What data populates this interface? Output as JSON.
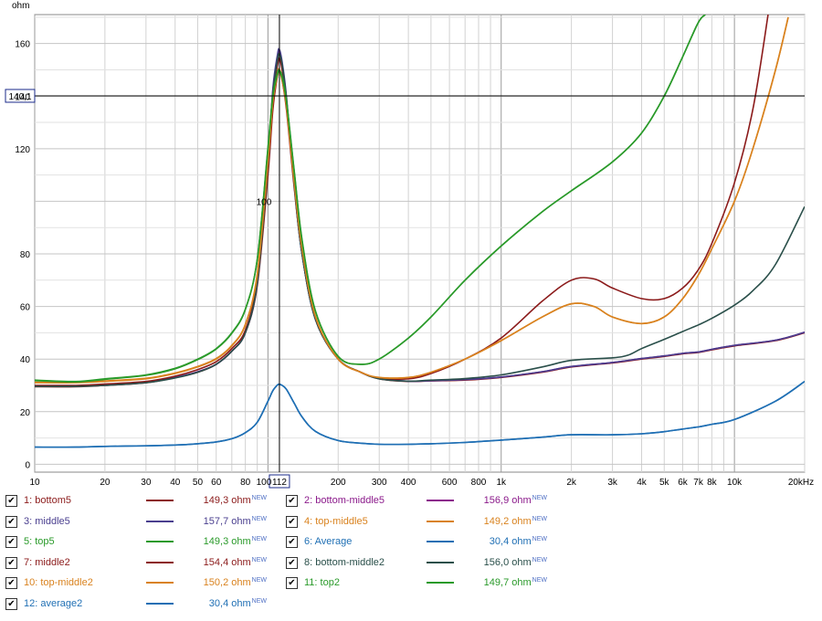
{
  "chart_data": {
    "type": "line",
    "ylabel": "ohm",
    "xunit": "Hz",
    "x_scale": "log",
    "xlim": [
      10,
      20000
    ],
    "ylim": [
      -3,
      171
    ],
    "grid": true,
    "x_ticks": [
      "10",
      "20",
      "30",
      "40",
      "50",
      "60",
      "80",
      "100",
      "200",
      "300",
      "400",
      "600",
      "800",
      "1k",
      "2k",
      "3k",
      "4k",
      "5k",
      "6k",
      "7k",
      "8k",
      "10k",
      "20kHz"
    ],
    "x_tick_values": [
      10,
      20,
      30,
      40,
      50,
      60,
      80,
      100,
      200,
      300,
      400,
      600,
      800,
      1000,
      2000,
      3000,
      4000,
      5000,
      6000,
      7000,
      8000,
      10000,
      20000
    ],
    "y_ticks": [
      0,
      20,
      40,
      60,
      80,
      100,
      120,
      140,
      160
    ],
    "cursor": {
      "x": 112,
      "x_label": "112",
      "y": 140.1,
      "y_label": "140,1"
    },
    "series": [
      {
        "name": "1: bottom5",
        "color": "#8b1a1a",
        "value_label": "149,3 ohm",
        "x": [
          10,
          15,
          20,
          30,
          40,
          50,
          60,
          70,
          80,
          90,
          100,
          105,
          110,
          112,
          115,
          120,
          130,
          140,
          160,
          200,
          250,
          300,
          400,
          500,
          700,
          1000,
          1500,
          2000,
          3000,
          4000,
          5000,
          6000,
          7000,
          8000,
          10000,
          15000,
          20000
        ],
        "y": [
          29.5,
          29.5,
          30,
          31,
          33,
          35,
          38,
          43,
          50,
          68,
          110,
          135,
          148,
          149.3,
          146,
          135,
          104,
          80,
          55,
          40,
          35,
          32.5,
          31.5,
          31.7,
          32,
          33,
          35,
          37,
          38.5,
          40,
          41,
          42,
          42.5,
          43.5,
          45,
          47,
          50
        ]
      },
      {
        "name": "2: bottom-middle5",
        "color": "#8b1a8b",
        "value_label": "156,9 ohm",
        "x": [
          10,
          15,
          20,
          30,
          40,
          50,
          60,
          70,
          80,
          90,
          100,
          105,
          110,
          112,
          115,
          120,
          130,
          140,
          160,
          200,
          250,
          300,
          400,
          500,
          700,
          1000,
          1500,
          2000,
          3000,
          4000,
          5000,
          6000,
          7000,
          8000,
          10000,
          15000,
          20000
        ],
        "y": [
          29.8,
          29.8,
          30.2,
          31.2,
          33,
          35.2,
          38,
          43,
          50,
          69,
          115,
          142,
          155,
          156.9,
          152,
          139,
          105,
          80,
          55,
          40,
          35,
          32.6,
          31.6,
          31.8,
          32.2,
          33.2,
          35.2,
          37.2,
          38.7,
          40.2,
          41.2,
          42.2,
          42.7,
          43.7,
          45.2,
          47.2,
          50.2
        ]
      },
      {
        "name": "3: middle5",
        "color": "#4a3f8f",
        "value_label": "157,7 ohm",
        "x": [
          10,
          15,
          20,
          30,
          40,
          50,
          60,
          70,
          80,
          90,
          100,
          105,
          110,
          112,
          115,
          120,
          130,
          140,
          160,
          200,
          250,
          300,
          400,
          500,
          700,
          1000,
          1500,
          2000,
          3000,
          4000,
          5000,
          6000,
          7000,
          8000,
          10000,
          15000,
          20000
        ],
        "y": [
          29.7,
          29.7,
          30.1,
          31.1,
          33,
          35.1,
          38,
          43,
          50,
          69,
          115,
          143,
          156,
          157.7,
          153,
          140,
          105,
          80,
          55,
          40,
          35,
          32.6,
          31.6,
          31.8,
          32.2,
          33.2,
          35.2,
          37.2,
          38.7,
          40.2,
          41.2,
          42.2,
          42.7,
          43.7,
          45.2,
          47.2,
          50.2
        ]
      },
      {
        "name": "4: top-middle5",
        "color": "#d9821e",
        "value_label": "149,2 ohm",
        "x": [
          10,
          15,
          20,
          30,
          40,
          50,
          60,
          70,
          80,
          90,
          100,
          105,
          110,
          112,
          115,
          120,
          130,
          140,
          160,
          200,
          250,
          300,
          400,
          500,
          700,
          1000,
          1500,
          2000,
          2500,
          3000,
          4000,
          5000,
          6000,
          7000,
          8000,
          10000,
          12000,
          15000,
          17000
        ],
        "y": [
          31,
          31,
          31.5,
          32.5,
          34.5,
          37,
          40,
          45,
          53,
          72,
          115,
          138,
          148,
          149.2,
          146,
          136,
          106,
          82,
          56,
          40,
          35,
          33,
          33,
          35,
          40,
          47,
          56,
          61,
          60,
          56,
          53.5,
          56,
          63,
          72,
          82,
          100,
          120,
          150,
          170
        ]
      },
      {
        "name": "5: top5",
        "color": "#2a9a2a",
        "value_label": "149,3 ohm",
        "x": [
          10,
          15,
          20,
          30,
          40,
          50,
          60,
          70,
          80,
          90,
          100,
          105,
          110,
          112,
          115,
          120,
          130,
          140,
          160,
          200,
          250,
          300,
          400,
          500,
          700,
          1000,
          1500,
          2000,
          3000,
          4000,
          5000,
          6000,
          7000,
          7500
        ],
        "y": [
          32,
          31.5,
          32.5,
          34,
          36.5,
          40,
          44,
          50,
          59,
          78,
          120,
          140,
          148.5,
          149.3,
          147,
          138,
          110,
          85,
          58,
          41,
          38,
          40,
          48,
          56,
          70,
          83,
          96,
          104,
          115,
          126,
          140,
          155,
          168,
          171
        ]
      },
      {
        "name": "6: Average",
        "color": "#1f6fb4",
        "value_label": "30,4 ohm",
        "x": [
          10,
          15,
          20,
          30,
          40,
          50,
          60,
          70,
          80,
          90,
          100,
          105,
          110,
          112,
          115,
          120,
          130,
          140,
          160,
          200,
          250,
          300,
          400,
          500,
          700,
          1000,
          1500,
          2000,
          3000,
          4000,
          5000,
          6000,
          7000,
          8000,
          10000,
          15000,
          20000
        ],
        "y": [
          6.5,
          6.5,
          6.8,
          7,
          7.3,
          7.8,
          8.5,
          9.7,
          12,
          16,
          24,
          28,
          30.2,
          30.4,
          30,
          28.5,
          23,
          18,
          12.5,
          9,
          8,
          7.6,
          7.6,
          7.8,
          8.3,
          9.2,
          10.3,
          11.2,
          11.2,
          11.6,
          12.4,
          13.4,
          14.2,
          15.2,
          17,
          24,
          31.5
        ]
      },
      {
        "name": "7: middle2",
        "color": "#8b1a1a",
        "value_label": "154,4 ohm",
        "x": [
          10,
          15,
          20,
          30,
          40,
          50,
          60,
          70,
          80,
          90,
          100,
          105,
          110,
          112,
          115,
          120,
          130,
          140,
          160,
          200,
          250,
          300,
          400,
          500,
          700,
          1000,
          1500,
          2000,
          2500,
          3000,
          4000,
          5000,
          6000,
          7000,
          8000,
          10000,
          12000,
          14000
        ],
        "y": [
          30,
          30,
          30.5,
          31.5,
          33.5,
          36,
          39,
          44,
          51,
          70,
          113,
          140,
          152,
          154.4,
          150,
          138,
          106,
          81,
          55.5,
          40,
          35,
          32.8,
          32.5,
          34.5,
          40,
          48,
          62,
          70,
          70.5,
          67,
          63,
          63,
          67,
          74,
          84,
          107,
          135,
          172
        ]
      },
      {
        "name": "8: bottom-middle2",
        "color": "#2a4f4a",
        "value_label": "156,0 ohm",
        "x": [
          10,
          15,
          20,
          30,
          40,
          50,
          60,
          70,
          80,
          90,
          100,
          105,
          110,
          112,
          115,
          120,
          130,
          140,
          160,
          200,
          250,
          300,
          400,
          500,
          700,
          1000,
          1500,
          2000,
          3000,
          3500,
          4000,
          5000,
          6000,
          7000,
          8000,
          10000,
          12000,
          15000,
          20000
        ],
        "y": [
          29.6,
          29.6,
          30,
          31,
          32.8,
          35,
          38,
          43,
          50,
          69,
          114,
          141,
          154,
          156,
          152,
          139,
          105,
          80,
          55,
          40,
          35,
          32.5,
          31.6,
          32,
          32.6,
          34,
          37,
          39.5,
          40.5,
          41.5,
          44,
          47.5,
          50.5,
          53,
          55.5,
          60.5,
          66,
          76,
          98
        ]
      },
      {
        "name": "10: top-middle2",
        "color": "#d9821e",
        "value_label": "150,2 ohm",
        "x": [
          10,
          15,
          20,
          30,
          40,
          50,
          60,
          70,
          80,
          90,
          100,
          105,
          110,
          112,
          115,
          120,
          130,
          140,
          160,
          200,
          250,
          300,
          400,
          500,
          700,
          1000,
          1500,
          2000,
          2500,
          3000,
          4000,
          5000,
          6000,
          7000,
          8000,
          10000,
          12000,
          15000,
          17000
        ],
        "y": [
          31.2,
          31.2,
          31.7,
          32.7,
          34.7,
          37.2,
          40.2,
          45.2,
          53.2,
          72.5,
          116,
          139,
          149,
          150.2,
          147,
          137,
          106.5,
          82,
          56,
          40,
          35,
          33,
          33,
          35,
          40,
          47,
          56,
          61,
          60,
          56,
          53.5,
          56,
          63,
          72,
          82,
          100,
          120,
          150,
          170
        ]
      },
      {
        "name": "11: top2",
        "color": "#2a9a2a",
        "value_label": "149,7 ohm",
        "x": [
          10,
          15,
          20,
          30,
          40,
          50,
          60,
          70,
          80,
          90,
          100,
          105,
          110,
          112,
          115,
          120,
          130,
          140,
          160,
          200,
          250,
          300,
          400,
          500,
          700,
          1000,
          1500,
          2000,
          3000,
          4000,
          5000,
          6000,
          7000,
          7500
        ],
        "y": [
          31.8,
          31.3,
          32.3,
          33.8,
          36.3,
          39.8,
          43.8,
          49.8,
          58.8,
          78,
          120.5,
          140.5,
          149,
          149.7,
          147.5,
          138.5,
          110.5,
          85.5,
          58.2,
          41,
          38,
          40,
          48,
          56,
          70,
          83,
          96,
          104,
          115,
          126,
          140,
          155,
          168,
          171
        ]
      },
      {
        "name": "12: average2",
        "color": "#1f6fb4",
        "value_label": "30,4 ohm",
        "x": [
          10,
          15,
          20,
          30,
          40,
          50,
          60,
          70,
          80,
          90,
          100,
          105,
          110,
          112,
          115,
          120,
          130,
          140,
          160,
          200,
          250,
          300,
          400,
          500,
          700,
          1000,
          1500,
          2000,
          3000,
          4000,
          5000,
          6000,
          7000,
          8000,
          10000,
          15000,
          20000
        ],
        "y": [
          6.5,
          6.5,
          6.8,
          7,
          7.3,
          7.8,
          8.5,
          9.7,
          12,
          16,
          24,
          28,
          30.2,
          30.4,
          30,
          28.5,
          23,
          18,
          12.5,
          9,
          8,
          7.6,
          7.6,
          7.8,
          8.3,
          9.2,
          10.3,
          11.2,
          11.2,
          11.6,
          12.4,
          13.4,
          14.2,
          15.2,
          17,
          24,
          31.5
        ]
      }
    ]
  },
  "legend": {
    "items": [
      {
        "name": "1: bottom5",
        "color": "#8b1a1a",
        "value": "149,3 ohm",
        "badge": "NEW",
        "checked": true
      },
      {
        "name": "2: bottom-middle5",
        "color": "#8b1a8b",
        "value": "156,9 ohm",
        "badge": "NEW",
        "checked": true
      },
      {
        "name": "3: middle5",
        "color": "#4a3f8f",
        "value": "157,7 ohm",
        "badge": "NEW",
        "checked": true
      },
      {
        "name": "4: top-middle5",
        "color": "#d9821e",
        "value": "149,2 ohm",
        "badge": "NEW",
        "checked": true
      },
      {
        "name": "5: top5",
        "color": "#2a9a2a",
        "value": "149,3 ohm",
        "badge": "NEW",
        "checked": true
      },
      {
        "name": "6: Average",
        "color": "#1f6fb4",
        "value": "30,4 ohm",
        "badge": "NEW",
        "checked": true
      },
      {
        "name": "7: middle2",
        "color": "#8b1a1a",
        "value": "154,4 ohm",
        "badge": "NEW",
        "checked": true
      },
      {
        "name": "8: bottom-middle2",
        "color": "#2a4f4a",
        "value": "156,0 ohm",
        "badge": "NEW",
        "checked": true
      },
      {
        "name": "10: top-middle2",
        "color": "#d9821e",
        "value": "150,2 ohm",
        "badge": "NEW",
        "checked": true
      },
      {
        "name": "11: top2",
        "color": "#2a9a2a",
        "value": "149,7 ohm",
        "badge": "NEW",
        "checked": true
      },
      {
        "name": "12: average2",
        "color": "#1f6fb4",
        "value": "30,4 ohm",
        "badge": "NEW",
        "checked": true
      }
    ]
  }
}
